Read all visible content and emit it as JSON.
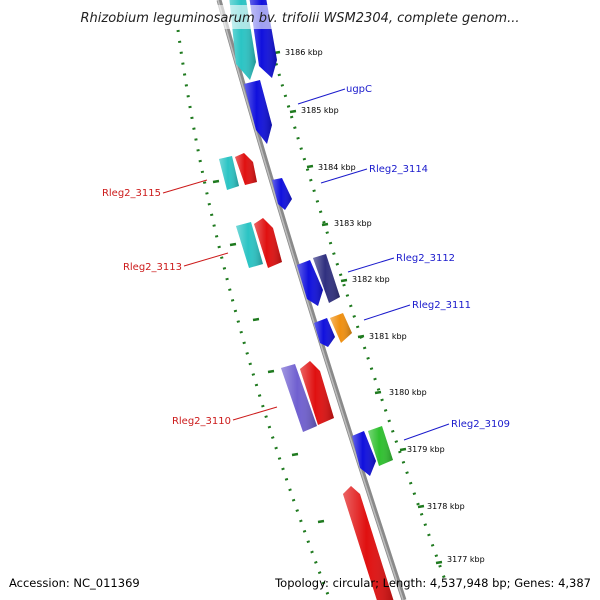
{
  "title": "Rhizobium leguminosarum bv. trifolii WSM2304, complete genom...",
  "footer": {
    "accession": "Accession: NC_011369",
    "summary": "Topology: circular; Length: 4,537,948 bp; Genes: 4,387"
  },
  "colors": {
    "backbone": "#8a8a8a",
    "tick": "#1f7a1f",
    "forward_label": "#1a1acc",
    "reverse_label": "#cc1a1a"
  },
  "kbp_labels": [
    "3186 kbp",
    "3185 kbp",
    "3184 kbp",
    "3183 kbp",
    "3182 kbp",
    "3181 kbp",
    "3180 kbp",
    "3179 kbp",
    "3178 kbp",
    "3177 kbp"
  ],
  "gene_labels": [
    {
      "text": "ugpC",
      "strand": "forward"
    },
    {
      "text": "Rleg2_3114",
      "strand": "forward"
    },
    {
      "text": "Rleg2_3115",
      "strand": "reverse"
    },
    {
      "text": "Rleg2_3113",
      "strand": "reverse"
    },
    {
      "text": "Rleg2_3112",
      "strand": "forward"
    },
    {
      "text": "Rleg2_3111",
      "strand": "forward"
    },
    {
      "text": "Rleg2_3110",
      "strand": "reverse"
    },
    {
      "text": "Rleg2_3109",
      "strand": "forward"
    }
  ],
  "features": [
    {
      "name": "feature-cyan-top",
      "color": "#2bc4c4"
    },
    {
      "name": "feature-blue-top",
      "color": "#1010dd"
    },
    {
      "name": "feature-ugpC",
      "color": "#1010dd"
    },
    {
      "name": "feature-cyan-3115",
      "color": "#2bc4c4"
    },
    {
      "name": "feature-red-3115",
      "color": "#e01010"
    },
    {
      "name": "feature-blue-3114",
      "color": "#1010dd"
    },
    {
      "name": "feature-cyan-3113",
      "color": "#2bc4c4"
    },
    {
      "name": "feature-red-3113",
      "color": "#e01010"
    },
    {
      "name": "feature-blue-3182",
      "color": "#1010dd"
    },
    {
      "name": "feature-navy-3112",
      "color": "#303080"
    },
    {
      "name": "feature-blue-3181",
      "color": "#1010dd"
    },
    {
      "name": "feature-orange-3111",
      "color": "#f09010"
    },
    {
      "name": "feature-purple-3110",
      "color": "#7060d0"
    },
    {
      "name": "feature-red-3110",
      "color": "#e01010"
    },
    {
      "name": "feature-blue-3179",
      "color": "#1010dd"
    },
    {
      "name": "feature-green-3109",
      "color": "#30c030"
    },
    {
      "name": "feature-red-bottom",
      "color": "#e01010"
    }
  ]
}
